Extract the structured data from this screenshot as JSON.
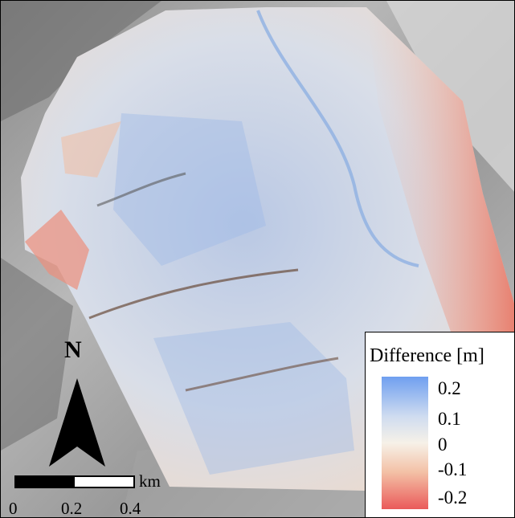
{
  "legend": {
    "title": "Difference [m]",
    "labels": [
      "0.2",
      "0.1",
      "0",
      "-0.1",
      "-0.2"
    ],
    "colors": {
      "high": "#6f9ff0",
      "mid_high": "#cfdcf0",
      "zero": "#f6f1e8",
      "mid_low": "#f3c1a6",
      "low": "#ea5a5a"
    },
    "range": [
      -0.2,
      0.2
    ]
  },
  "scalebar": {
    "unit": "km",
    "ticks": [
      "0",
      "0.2",
      "0.4"
    ]
  },
  "north_arrow": {
    "label": "N"
  },
  "map": {
    "basemap": "hillshade",
    "overlay": "elevation difference raster"
  }
}
